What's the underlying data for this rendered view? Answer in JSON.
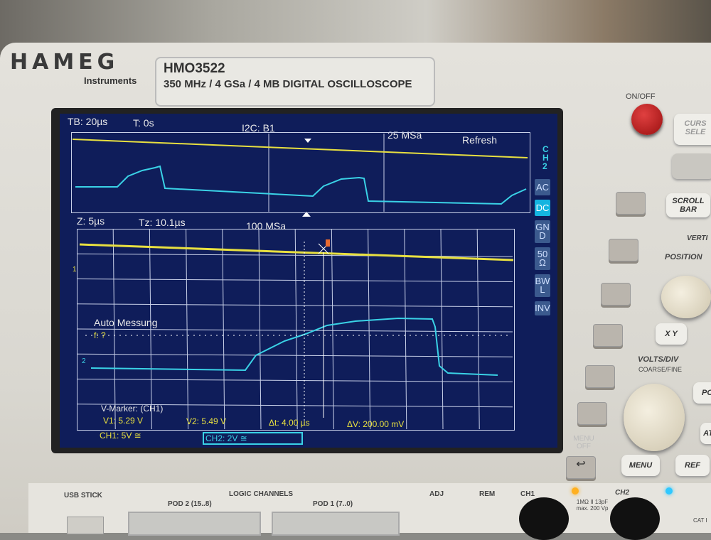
{
  "device": {
    "brand": "HAMEG",
    "brand_sub": "Instruments",
    "model": "HMO3522",
    "description": "350 MHz / 4 GSa / 4 MB DIGITAL OSCILLOSCOPE",
    "power_label": "ON/OFF"
  },
  "screen": {
    "top": {
      "timebase": "TB: 20µs",
      "trigger_time": "T: 0s",
      "bus": "I2C: B1",
      "sample_rate": "25 MSa",
      "mode": "Refresh"
    },
    "zoom": {
      "zoom_timebase": "Z: 5µs",
      "zoom_time": "Tz: 10.1µs",
      "sample_rate": "100 MSa",
      "ch1_marker": "1",
      "ch2_marker": "2"
    },
    "measure": {
      "title": "Auto Messung",
      "freq": "f: ?"
    },
    "cursor": {
      "title": "V-Marker: (CH1)",
      "v1": "V1: 5.29 V",
      "v2": "V2: 5.49 V",
      "dt": "Δt: 4.00 µs",
      "dv": "ΔV: 200.00 mV"
    },
    "channels": {
      "ch1": "CH1: 5V ≅",
      "ch2": "CH2: 2V ≅"
    },
    "side_menu": {
      "title": "CH2",
      "items": [
        "AC",
        "DC",
        "GND",
        "50Ω",
        "BWL",
        "INV"
      ],
      "active": "DC"
    },
    "colors": {
      "ch1": "#e8e040",
      "ch2": "#3ad2e6",
      "background": "#0f1d5a"
    }
  },
  "panel": {
    "scroll_bar": "SCROLL BAR",
    "vertical": "VERTI",
    "position": "POSITION",
    "xy": "X Y",
    "volts_div": "VOLTS/DIV",
    "coarse_fine": "COARSE/FINE",
    "menu_off": "MENU OFF",
    "menu": "MENU",
    "ref_bus": "REF BUS",
    "cursor_select": "CURS SELE",
    "po": "PO",
    "math": "ATH"
  },
  "bottom": {
    "usb": "USB STICK",
    "logic": "LOGIC CHANNELS",
    "pod2": "POD 2 (15..8)",
    "pod1": "POD 1 (7..0)",
    "adj": "ADJ",
    "rem": "REM",
    "ch1": "CH1",
    "ch2": "CH2",
    "input_spec": "1MΩ II 13pF max. 200 Vp",
    "cat": "CAT I"
  }
}
